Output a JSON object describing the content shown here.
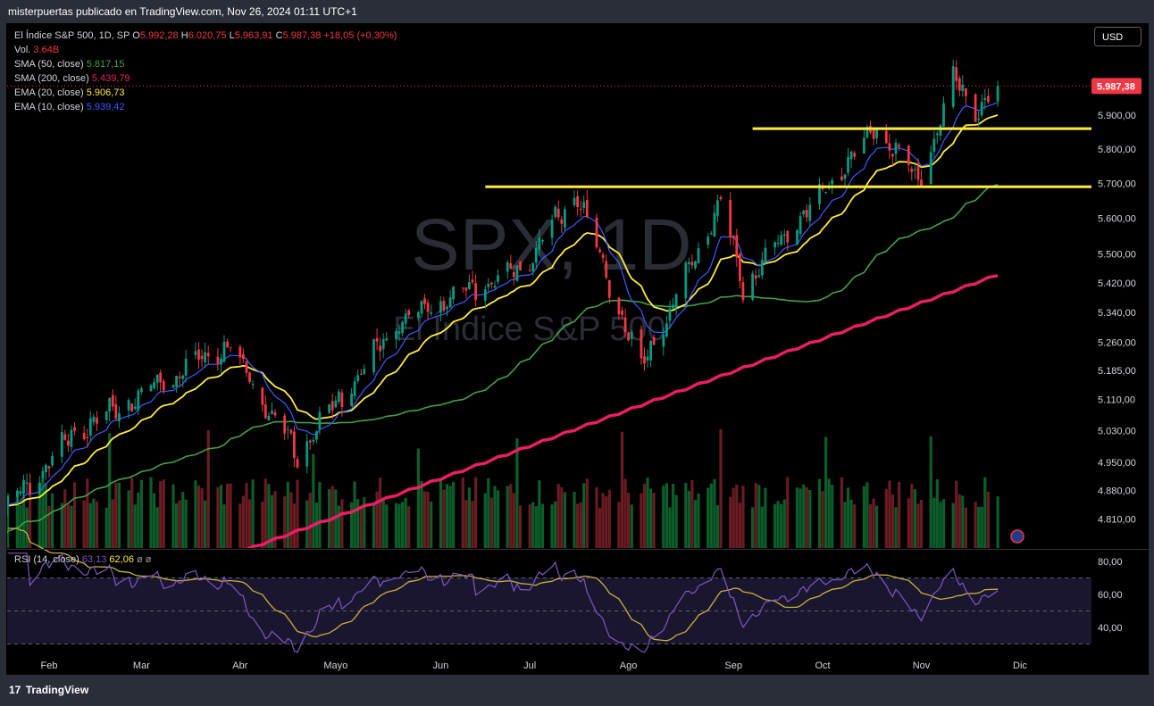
{
  "header": {
    "credit": "misterpuertas publicado en TradingView.com, Nov 26, 2024 01:11 UTC+1"
  },
  "watermark": {
    "symbol": "SPX, 1D",
    "name": "El Índice S&P 500"
  },
  "legend": {
    "instrument": "El Índice S&P 500, 1D, SP",
    "o_label": "O",
    "o_value": "5.992,28",
    "h_label": "H",
    "h_value": "6.020,75",
    "l_label": "L",
    "l_value": "5.963,91",
    "c_label": "C",
    "c_value": "5.987,38",
    "change": "+18,05 (+0,30%)",
    "vol_label": "Vol.",
    "vol_value": "3.64B",
    "sma50_label": "SMA (50, close)",
    "sma50_value": "5.817,15",
    "sma200_label": "SMA (200, close)",
    "sma200_value": "5.439,79",
    "ema20_label": "EMA (20, close)",
    "ema20_value": "5.906,73",
    "ema10_label": "EMA (10, close)",
    "ema10_value": "5.939,42"
  },
  "currency": "USD",
  "price_badge": "5.987,38",
  "rsi_legend": {
    "label": "RSI (14, close)",
    "value1": "63,13",
    "value2": "62,06",
    "extra1": "ø",
    "extra2": "ø"
  },
  "logo": {
    "mark": "17",
    "text": "TradingView"
  },
  "colors": {
    "up": "#089981",
    "down": "#f23645",
    "sma50": "#43a047",
    "sma200": "#e91e63",
    "ema20": "#ffeb3b",
    "ema10": "#3d5afe",
    "rsi": "#7e57c2",
    "rsi_ma": "#c9b13a",
    "hline": "#ffeb3b"
  },
  "chart_data": {
    "type": "candlestick",
    "y_scale": "log",
    "price_ticks": [
      "5.987,38",
      "5.900,00",
      "5.800,00",
      "5.700,00",
      "5.600,00",
      "5.500,00",
      "5.420,00",
      "5.340,00",
      "5.260,00",
      "5.185,00",
      "5.110,00",
      "5.030,00",
      "4.950,00",
      "4.880,00",
      "4.810,00"
    ],
    "price_tick_values": [
      5987.38,
      5900,
      5800,
      5700,
      5600,
      5500,
      5420,
      5340,
      5260,
      5185,
      5110,
      5030,
      4950,
      4880,
      4810
    ],
    "x_labels": [
      "Feb",
      "Mar",
      "Abr",
      "Mayo",
      "Jun",
      "Jul",
      "Ago",
      "Sep",
      "Oct",
      "Nov",
      "Dic"
    ],
    "x_label_dates": [
      "2024-02-01",
      "2024-03-01",
      "2024-04-01",
      "2024-05-01",
      "2024-06-03",
      "2024-07-01",
      "2024-08-01",
      "2024-09-03",
      "2024-10-01",
      "2024-11-01",
      "2024-12-02"
    ],
    "horizontal_lines": [
      {
        "price": 5860,
        "from": "2024-09-09",
        "to": "2024-12-31"
      },
      {
        "price": 5690,
        "from": "2024-06-17",
        "to": "2024-12-31"
      }
    ],
    "last_close": 5987.38,
    "rsi_ticks": [
      "80,00",
      "60,00",
      "40,00"
    ],
    "rsi_tick_values": [
      80,
      60,
      40
    ],
    "rsi_bands": [
      70,
      50,
      30
    ],
    "key_closes": [
      {
        "date": "2024-01-19",
        "close": 4840
      },
      {
        "date": "2024-02-09",
        "close": 5026
      },
      {
        "date": "2024-03-28",
        "close": 5254
      },
      {
        "date": "2024-04-19",
        "close": 4967
      },
      {
        "date": "2024-05-21",
        "close": 5321
      },
      {
        "date": "2024-06-28",
        "close": 5460
      },
      {
        "date": "2024-07-16",
        "close": 5667
      },
      {
        "date": "2024-08-05",
        "close": 5186
      },
      {
        "date": "2024-08-30",
        "close": 5648
      },
      {
        "date": "2024-09-06",
        "close": 5408
      },
      {
        "date": "2024-10-18",
        "close": 5864
      },
      {
        "date": "2024-10-31",
        "close": 5705
      },
      {
        "date": "2024-11-11",
        "close": 6001
      },
      {
        "date": "2024-11-19",
        "close": 5916
      },
      {
        "date": "2024-11-25",
        "close": 5987.38
      }
    ],
    "sma200_range": {
      "start": 4530,
      "end": 5439.79
    },
    "volume_latest": "3.64B"
  }
}
